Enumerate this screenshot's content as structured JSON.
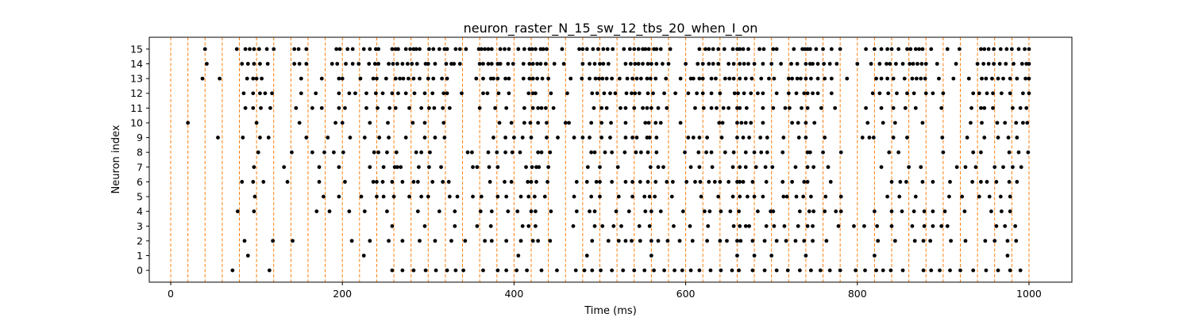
{
  "chart_data": {
    "type": "scatter",
    "title": "neuron_raster_N_15_sw_12_tbs_20_when_I_on",
    "xlabel": "Time (ms)",
    "ylabel": "Neuron index",
    "xlim": [
      -25,
      1050
    ],
    "ylim": [
      -0.8,
      15.8
    ],
    "x_ticks": [
      0,
      200,
      400,
      600,
      800,
      1000
    ],
    "y_ticks": [
      0,
      1,
      2,
      3,
      4,
      5,
      6,
      7,
      8,
      9,
      10,
      11,
      12,
      13,
      14,
      15
    ],
    "grid": false,
    "legend": "none",
    "marker_color": "#000000",
    "stimulus_line_color": "#ff7f0e",
    "stimulus_lines": [
      0,
      20,
      40,
      60,
      80,
      100,
      120,
      140,
      160,
      180,
      200,
      220,
      240,
      260,
      280,
      300,
      320,
      340,
      360,
      380,
      400,
      420,
      440,
      460,
      480,
      500,
      520,
      540,
      560,
      580,
      600,
      620,
      640,
      660,
      680,
      700,
      720,
      740,
      760,
      780,
      800,
      820,
      840,
      860,
      880,
      900,
      920,
      940,
      960,
      980,
      1000
    ],
    "spikes": [
      {
        "neuron": 15,
        "times": [
          40,
          77,
          87,
          92,
          97,
          103,
          112,
          120,
          144,
          149,
          158,
          193,
          197,
          206,
          212,
          225,
          232,
          239,
          242,
          258,
          262,
          265,
          274,
          279,
          283,
          286,
          290,
          301,
          306,
          313,
          319,
          322,
          332,
          337,
          344,
          359,
          362,
          366,
          370,
          374,
          384,
          389,
          394,
          405,
          412,
          418,
          421,
          425,
          431,
          434,
          438,
          456,
          476,
          480,
          485,
          492,
          498,
          504,
          509,
          515,
          528,
          535,
          540,
          545,
          550,
          553,
          557,
          563,
          566,
          571,
          582,
          616,
          623,
          627,
          632,
          638,
          645,
          655,
          660,
          663,
          667,
          673,
          686,
          691,
          702,
          706,
          726,
          736,
          739,
          742,
          745,
          752,
          760,
          770,
          780,
          810,
          820,
          828,
          835,
          840,
          848,
          858,
          862,
          868,
          872,
          876,
          886,
          905,
          919,
          944,
          948,
          953,
          959,
          967,
          974,
          980,
          988,
          995,
          1000
        ]
      },
      {
        "neuron": 14,
        "times": [
          42,
          83,
          90,
          97,
          104,
          113,
          144,
          150,
          158,
          188,
          194,
          204,
          212,
          219,
          231,
          238,
          242,
          254,
          259,
          264,
          270,
          276,
          281,
          287,
          297,
          300,
          308,
          321,
          327,
          330,
          337,
          360,
          364,
          370,
          374,
          381,
          384,
          393,
          399,
          411,
          418,
          422,
          427,
          431,
          437,
          447,
          458,
          480,
          488,
          494,
          500,
          504,
          510,
          530,
          536,
          541,
          545,
          550,
          556,
          560,
          566,
          573,
          580,
          600,
          614,
          620,
          627,
          632,
          638,
          650,
          656,
          663,
          668,
          673,
          680,
          690,
          700,
          711,
          723,
          730,
          740,
          745,
          748,
          754,
          761,
          768,
          776,
          800,
          816,
          826,
          834,
          838,
          845,
          853,
          861,
          865,
          870,
          875,
          880,
          893,
          915,
          940,
          947,
          953,
          959,
          966,
          973,
          982,
          992,
          997,
          1000
        ]
      },
      {
        "neuron": 13,
        "times": [
          37,
          57,
          89,
          96,
          100,
          106,
          152,
          176,
          196,
          200,
          221,
          236,
          240,
          251,
          262,
          267,
          271,
          277,
          283,
          290,
          300,
          306,
          316,
          322,
          356,
          364,
          373,
          376,
          381,
          390,
          394,
          411,
          418,
          422,
          427,
          433,
          440,
          466,
          479,
          488,
          495,
          499,
          503,
          508,
          514,
          523,
          532,
          538,
          543,
          548,
          555,
          559,
          565,
          577,
          594,
          606,
          609,
          616,
          620,
          630,
          635,
          646,
          651,
          656,
          663,
          670,
          677,
          688,
          697,
          703,
          720,
          724,
          730,
          734,
          740,
          746,
          754,
          762,
          770,
          788,
          822,
          828,
          835,
          842,
          855,
          864,
          869,
          874,
          879,
          895,
          912,
          930,
          945,
          950,
          957,
          964,
          970,
          978,
          986,
          996,
          1000
        ]
      },
      {
        "neuron": 12,
        "times": [
          85,
          96,
          104,
          110,
          118,
          152,
          169,
          196,
          208,
          215,
          228,
          239,
          247,
          258,
          265,
          274,
          284,
          296,
          305,
          318,
          322,
          339,
          364,
          369,
          382,
          394,
          417,
          422,
          425,
          443,
          462,
          491,
          497,
          505,
          512,
          518,
          531,
          537,
          541,
          546,
          556,
          562,
          575,
          588,
          603,
          613,
          620,
          630,
          640,
          657,
          661,
          668,
          676,
          684,
          690,
          706,
          720,
          729,
          738,
          742,
          748,
          754,
          770,
          818,
          826,
          836,
          846,
          858,
          866,
          880,
          888,
          900,
          935,
          942,
          951,
          958,
          968,
          978,
          993,
          1000
        ]
      },
      {
        "neuron": 11,
        "times": [
          87,
          96,
          105,
          116,
          146,
          165,
          176,
          196,
          203,
          228,
          241,
          255,
          262,
          278,
          292,
          301,
          307,
          317,
          325,
          360,
          378,
          391,
          412,
          422,
          428,
          432,
          437,
          446,
          493,
          502,
          508,
          524,
          530,
          540,
          550,
          555,
          560,
          568,
          578,
          611,
          621,
          630,
          636,
          644,
          650,
          660,
          663,
          671,
          690,
          702,
          716,
          721,
          735,
          742,
          758,
          774,
          810,
          828,
          842,
          856,
          868,
          898,
          933,
          944,
          948,
          958,
          981,
          990,
          997
        ]
      },
      {
        "neuron": 10,
        "times": [
          20,
          100,
          150,
          192,
          200,
          232,
          253,
          282,
          296,
          318,
          383,
          397,
          412,
          419,
          428,
          438,
          460,
          464,
          490,
          502,
          513,
          530,
          553,
          557,
          565,
          571,
          594,
          639,
          643,
          660,
          665,
          670,
          676,
          690,
          724,
          731,
          740,
          750,
          812,
          830,
          844,
          876,
          932,
          945,
          963,
          972,
          985,
          993,
          998
        ]
      },
      {
        "neuron": 9,
        "times": [
          55,
          84,
          104,
          114,
          158,
          183,
          209,
          226,
          243,
          254,
          274,
          296,
          308,
          319,
          376,
          390,
          400,
          410,
          420,
          438,
          451,
          470,
          480,
          488,
          502,
          512,
          530,
          538,
          543,
          555,
          558,
          566,
          603,
          609,
          616,
          625,
          642,
          660,
          667,
          674,
          687,
          695,
          714,
          732,
          740,
          762,
          806,
          814,
          819,
          842,
          858,
          899,
          928,
          948,
          964,
          976,
          986
        ]
      },
      {
        "neuron": 8,
        "times": [
          102,
          141,
          165,
          179,
          190,
          201,
          237,
          242,
          252,
          263,
          286,
          292,
          302,
          346,
          351,
          370,
          380,
          390,
          398,
          407,
          428,
          432,
          442,
          490,
          494,
          506,
          514,
          529,
          542,
          548,
          556,
          566,
          599,
          615,
          624,
          630,
          646,
          656,
          670,
          680,
          688,
          695,
          713,
          742,
          745,
          760,
          781,
          837,
          848,
          900,
          935,
          944,
          977,
          988,
          999
        ]
      },
      {
        "neuron": 7,
        "times": [
          97,
          132,
          173,
          196,
          232,
          248,
          261,
          264,
          268,
          289,
          301,
          315,
          352,
          357,
          371,
          381,
          414,
          421,
          426,
          429,
          440,
          486,
          500,
          521,
          559,
          568,
          574,
          606,
          616,
          631,
          655,
          663,
          670,
          682,
          693,
          701,
          728,
          742,
          749,
          766,
          828,
          860,
          874,
          916,
          926,
          938,
          960,
          970,
          981,
          991
        ]
      },
      {
        "neuron": 6,
        "times": [
          83,
          96,
          108,
          136,
          173,
          203,
          236,
          240,
          247,
          258,
          270,
          283,
          288,
          305,
          317,
          324,
          372,
          389,
          397,
          416,
          420,
          426,
          439,
          473,
          485,
          496,
          500,
          514,
          530,
          538,
          547,
          556,
          565,
          578,
          585,
          601,
          611,
          617,
          627,
          634,
          640,
          650,
          660,
          663,
          667,
          678,
          694,
          713,
          724,
          738,
          742,
          769,
          840,
          850,
          857,
          876,
          888,
          908,
          934,
          944,
          951,
          962,
          977,
          986
        ]
      },
      {
        "neuron": 5,
        "times": [
          98,
          178,
          196,
          222,
          240,
          248,
          260,
          278,
          292,
          300,
          325,
          334,
          352,
          362,
          381,
          391,
          408,
          417,
          424,
          436,
          470,
          490,
          500,
          522,
          538,
          552,
          558,
          564,
          584,
          618,
          638,
          655,
          663,
          672,
          680,
          690,
          714,
          718,
          729,
          737,
          746,
          763,
          781,
          835,
          849,
          868,
          907,
          922,
          942,
          954,
          967,
          978
        ]
      },
      {
        "neuron": 4,
        "times": [
          78,
          97,
          170,
          185,
          208,
          226,
          252,
          288,
          313,
          331,
          361,
          374,
          393,
          404,
          420,
          425,
          443,
          473,
          488,
          494,
          519,
          534,
          553,
          560,
          571,
          597,
          622,
          628,
          641,
          652,
          662,
          684,
          699,
          702,
          733,
          744,
          749,
          762,
          775,
          781,
          820,
          840,
          852,
          866,
          878,
          888,
          902,
          925,
          956,
          968,
          978
        ]
      },
      {
        "neuron": 3,
        "times": [
          258,
          296,
          331,
          357,
          373,
          410,
          417,
          425,
          469,
          494,
          503,
          516,
          525,
          546,
          558,
          586,
          605,
          626,
          656,
          663,
          670,
          674,
          694,
          703,
          715,
          731,
          742,
          748,
          778,
          796,
          808,
          823,
          840,
          864,
          878,
          888,
          898,
          905,
          962,
          972,
          984
        ]
      },
      {
        "neuron": 2,
        "times": [
          86,
          119,
          142,
          211,
          232,
          254,
          270,
          290,
          308,
          327,
          343,
          366,
          374,
          391,
          408,
          422,
          428,
          442,
          491,
          510,
          522,
          530,
          537,
          547,
          560,
          568,
          579,
          593,
          608,
          625,
          640,
          648,
          660,
          664,
          678,
          692,
          706,
          717,
          728,
          738,
          748,
          764,
          824,
          844,
          867,
          877,
          885,
          909,
          926,
          949,
          960,
          975,
          985
        ]
      },
      {
        "neuron": 1,
        "times": [
          90,
          225,
          405,
          485,
          560,
          660,
          680,
          700,
          740,
          820,
          975
        ]
      },
      {
        "neuron": 0,
        "times": [
          72,
          115,
          258,
          270,
          283,
          297,
          309,
          322,
          332,
          341,
          364,
          381,
          391,
          403,
          415,
          432,
          450,
          472,
          482,
          491,
          501,
          514,
          527,
          540,
          552,
          563,
          575,
          587,
          596,
          606,
          616,
          629,
          641,
          654,
          662,
          678,
          692,
          706,
          719,
          733,
          746,
          757,
          768,
          780,
          798,
          809,
          822,
          830,
          839,
          853,
          877,
          886,
          896,
          908,
          920,
          935,
          950,
          964,
          978,
          990
        ]
      }
    ]
  }
}
